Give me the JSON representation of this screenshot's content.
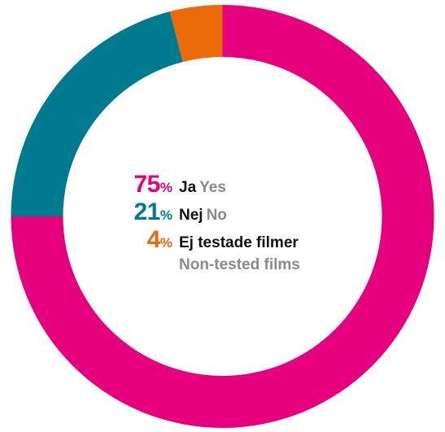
{
  "chart_data": {
    "type": "pie",
    "variant": "donut",
    "categories": [
      "Ja",
      "Nej",
      "Ej testade filmer"
    ],
    "series": [
      {
        "values": [
          75,
          21,
          4
        ]
      }
    ],
    "segments": [
      {
        "percent": "75",
        "percent_sign": "%",
        "label_sv": "Ja",
        "label_en": "Yes",
        "value": 75,
        "color": "#e6007e"
      },
      {
        "percent": "21",
        "percent_sign": "%",
        "label_sv": "Nej",
        "label_en": "No",
        "value": 21,
        "color": "#007a8e"
      },
      {
        "percent": "4",
        "percent_sign": "%",
        "label_sv": "Ej testade filmer",
        "label_en": "Non-tested films",
        "value": 4,
        "color": "#eb6a0a"
      }
    ],
    "start_angle_deg": 0,
    "direction": "clockwise",
    "legend": "center"
  }
}
